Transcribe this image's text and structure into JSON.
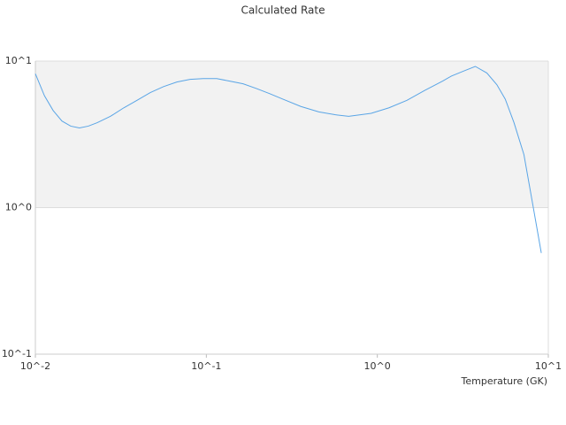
{
  "chart_data": {
    "type": "line",
    "title": "Calculated Rate",
    "x_label": "Temperature (GK)",
    "xscale": "log",
    "yscale": "log",
    "xlim": [
      0.01,
      10
    ],
    "ylim": [
      0.1,
      10
    ],
    "xticks": [
      {
        "value": 0.01,
        "label": "10^-2"
      },
      {
        "value": 0.1,
        "label": "10^-1"
      },
      {
        "value": 1,
        "label": "10^0"
      },
      {
        "value": 10,
        "label": "10^1"
      }
    ],
    "yticks": [
      {
        "value": 0.1,
        "label": "10^-1"
      },
      {
        "value": 1,
        "label": "10^0"
      },
      {
        "value": 10,
        "label": "10^1"
      }
    ],
    "band": [
      1,
      10
    ],
    "band_color": "#f2f2f2",
    "x": [
      0.01,
      0.0113,
      0.0127,
      0.0143,
      0.0161,
      0.0181,
      0.0204,
      0.023,
      0.0275,
      0.0329,
      0.0393,
      0.047,
      0.0562,
      0.0672,
      0.0803,
      0.096,
      0.115,
      0.137,
      0.164,
      0.196,
      0.234,
      0.28,
      0.357,
      0.455,
      0.57,
      0.68,
      0.92,
      1.17,
      1.49,
      1.89,
      2.41,
      2.71,
      3.24,
      3.74,
      4.37,
      5.0,
      5.6,
      6.3,
      7.2,
      8.1,
      9.1
    ],
    "series": [
      {
        "color": "#5aa5e6",
        "values": [
          8.2,
          5.8,
          4.6,
          3.9,
          3.6,
          3.5,
          3.6,
          3.8,
          4.2,
          4.8,
          5.4,
          6.1,
          6.7,
          7.2,
          7.5,
          7.6,
          7.6,
          7.3,
          7.0,
          6.5,
          6.0,
          5.5,
          4.9,
          4.5,
          4.3,
          4.2,
          4.4,
          4.8,
          5.4,
          6.3,
          7.3,
          7.9,
          8.6,
          9.2,
          8.3,
          6.9,
          5.5,
          3.8,
          2.3,
          1.06,
          0.49
        ]
      }
    ]
  }
}
